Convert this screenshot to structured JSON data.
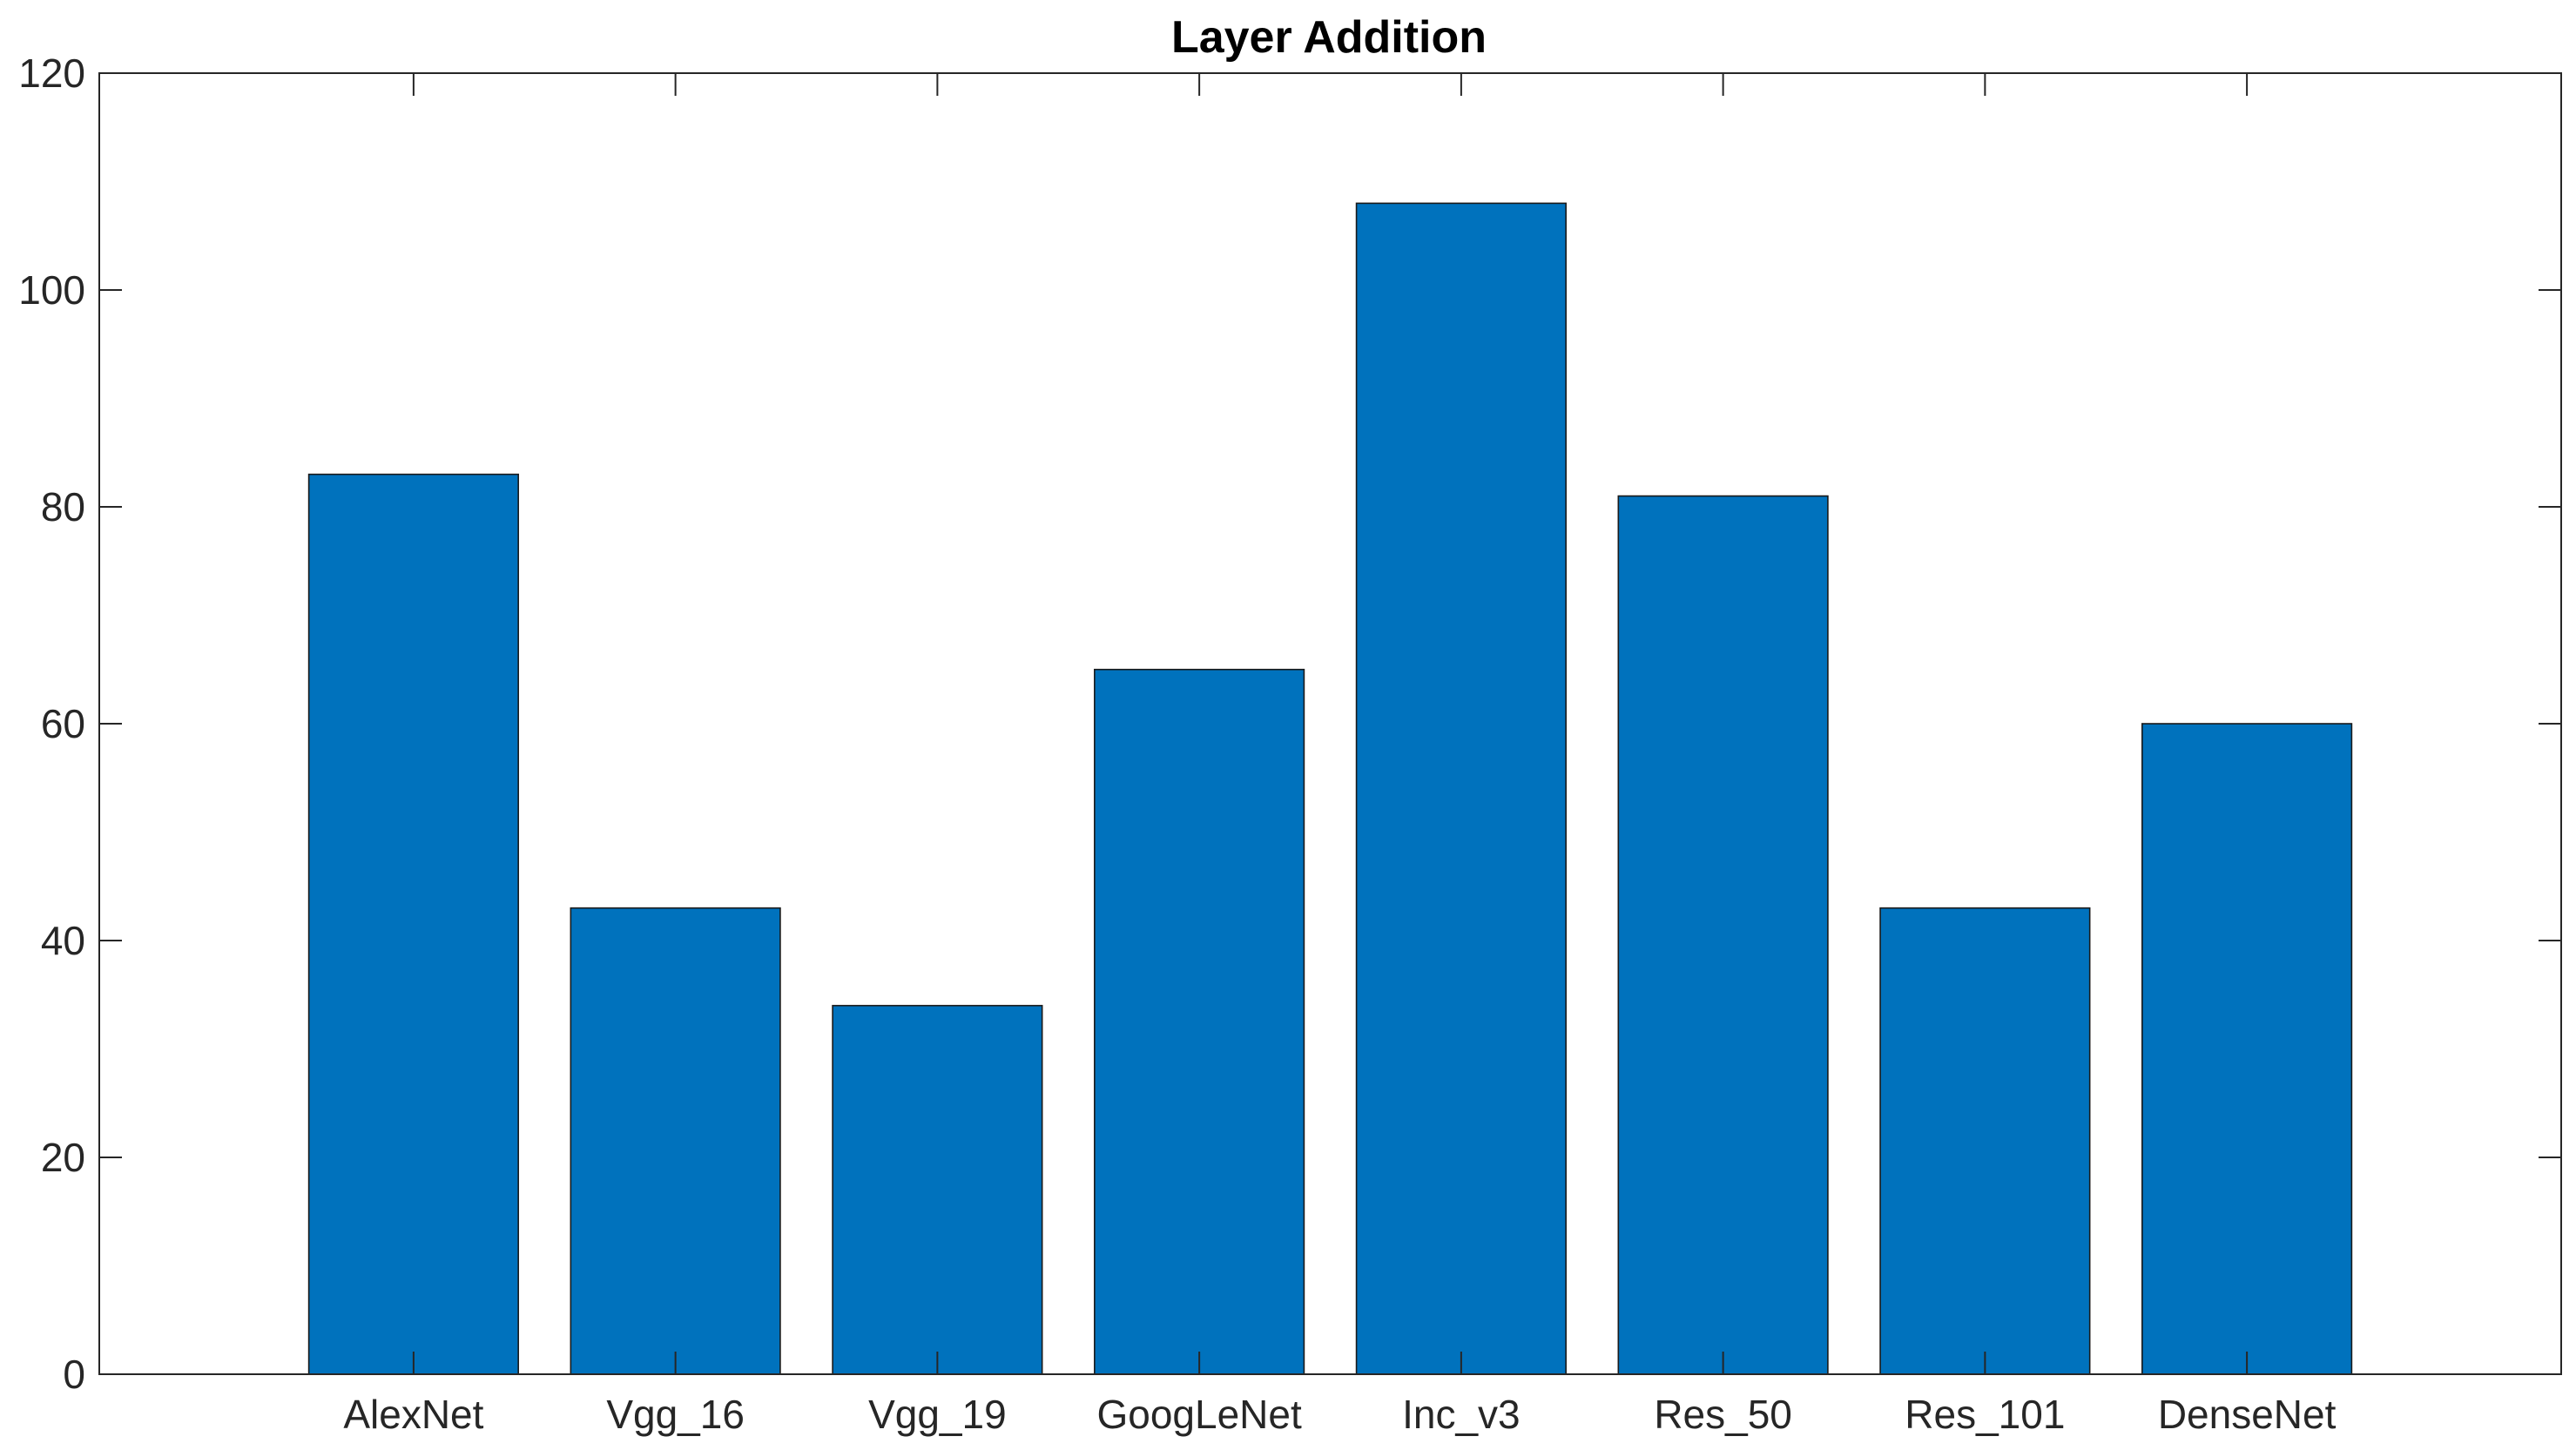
{
  "chart_data": {
    "type": "bar",
    "title": "Layer Addition",
    "xlabel": "",
    "ylabel": "",
    "categories": [
      "AlexNet",
      "Vgg_16",
      "Vgg_19",
      "GoogLeNet",
      "Inc_v3",
      "Res_50",
      "Res_101",
      "DenseNet"
    ],
    "values": [
      83,
      43,
      34,
      65,
      108,
      81,
      43,
      60
    ],
    "ylim": [
      0,
      120
    ],
    "yticks": [
      0,
      20,
      40,
      60,
      80,
      100,
      120
    ],
    "xlim": [
      -0.2,
      9.2
    ],
    "grid": false,
    "legend": "none",
    "colors": {
      "bar": "#0072bd",
      "bar_edge": "#1a1a1a",
      "axis": "#262626",
      "background": "#ffffff"
    }
  }
}
